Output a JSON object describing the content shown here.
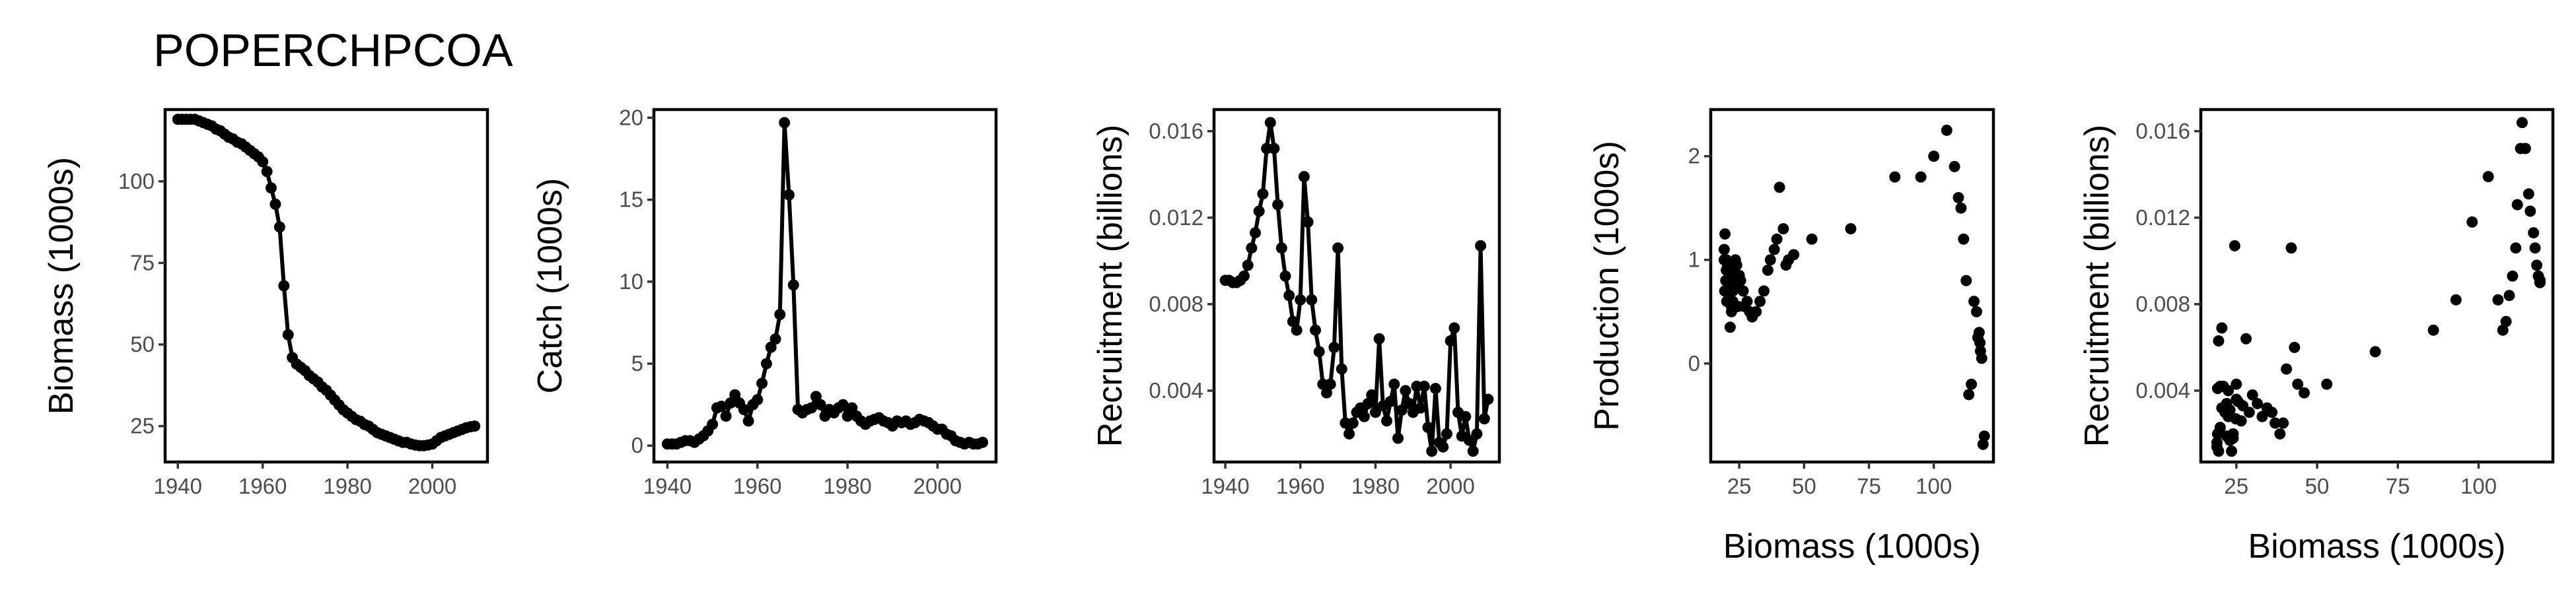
{
  "title": "POPERCHPCOA",
  "chart_data": [
    {
      "type": "line",
      "xlabel": "",
      "ylabel": "Biomass (1000s)",
      "xlim": [
        1937,
        2013
      ],
      "ylim": [
        14,
        122
      ],
      "xticks": [
        1940,
        1960,
        1980,
        2000
      ],
      "yticks": [
        25,
        50,
        75,
        100
      ],
      "ytick_labels": [
        "25",
        "50",
        "75",
        "100"
      ],
      "x": [
        1940,
        1941,
        1942,
        1943,
        1944,
        1945,
        1946,
        1947,
        1948,
        1949,
        1950,
        1951,
        1952,
        1953,
        1954,
        1955,
        1956,
        1957,
        1958,
        1959,
        1960,
        1961,
        1962,
        1963,
        1964,
        1965,
        1966,
        1967,
        1968,
        1969,
        1970,
        1971,
        1972,
        1973,
        1974,
        1975,
        1976,
        1977,
        1978,
        1979,
        1980,
        1981,
        1982,
        1983,
        1984,
        1985,
        1986,
        1987,
        1988,
        1989,
        1990,
        1991,
        1992,
        1993,
        1994,
        1995,
        1996,
        1997,
        1998,
        1999,
        2000,
        2001,
        2002,
        2003,
        2004,
        2005,
        2006,
        2007,
        2008,
        2009,
        2010
      ],
      "y": [
        119,
        119,
        119,
        119,
        119,
        118.5,
        118,
        117.5,
        117,
        116,
        115.5,
        114.5,
        113.5,
        113,
        112,
        111.5,
        110.5,
        109.5,
        108.5,
        107.5,
        106,
        103,
        98,
        93,
        86,
        68,
        53,
        46,
        44,
        43,
        42,
        40.5,
        39.5,
        38.5,
        37,
        36,
        34.5,
        33,
        31.5,
        30,
        29,
        28,
        27,
        26.5,
        25.5,
        25,
        24,
        23,
        22.5,
        22,
        21.5,
        21,
        20.5,
        20,
        20,
        19.5,
        19.2,
        19,
        19,
        19.2,
        19.5,
        20.5,
        21.5,
        22,
        22.5,
        23,
        23.5,
        24,
        24.5,
        24.8,
        25
      ]
    },
    {
      "type": "line",
      "xlabel": "",
      "ylabel": "Catch (1000s)",
      "xlim": [
        1937,
        2013
      ],
      "ylim": [
        -1,
        20.5
      ],
      "xticks": [
        1940,
        1960,
        1980,
        2000
      ],
      "yticks": [
        0,
        5,
        10,
        15,
        20
      ],
      "ytick_labels": [
        "0",
        "5",
        "10",
        "15",
        "20"
      ],
      "x": [
        1940,
        1941,
        1942,
        1943,
        1944,
        1945,
        1946,
        1947,
        1948,
        1949,
        1950,
        1951,
        1952,
        1953,
        1954,
        1955,
        1956,
        1957,
        1958,
        1959,
        1960,
        1961,
        1962,
        1963,
        1964,
        1965,
        1966,
        1967,
        1968,
        1969,
        1970,
        1971,
        1972,
        1973,
        1974,
        1975,
        1976,
        1977,
        1978,
        1979,
        1980,
        1981,
        1982,
        1983,
        1984,
        1985,
        1986,
        1987,
        1988,
        1989,
        1990,
        1991,
        1992,
        1993,
        1994,
        1995,
        1996,
        1997,
        1998,
        1999,
        2000,
        2001,
        2002,
        2003,
        2004,
        2005,
        2006,
        2007,
        2008,
        2009,
        2010
      ],
      "y": [
        0.1,
        0.1,
        0.1,
        0.2,
        0.3,
        0.3,
        0.2,
        0.4,
        0.6,
        0.9,
        1.3,
        2.3,
        2.4,
        1.8,
        2.6,
        3.1,
        2.6,
        2.2,
        1.5,
        2.5,
        2.8,
        3.8,
        5.0,
        6.0,
        6.5,
        8.0,
        19.7,
        15.3,
        9.8,
        2.2,
        2.0,
        2.2,
        2.3,
        3.0,
        2.5,
        1.8,
        2.2,
        2.0,
        2.3,
        2.5,
        1.8,
        2.3,
        1.8,
        1.5,
        1.3,
        1.5,
        1.6,
        1.7,
        1.5,
        1.4,
        1.2,
        1.5,
        1.4,
        1.5,
        1.3,
        1.4,
        1.6,
        1.5,
        1.4,
        1.2,
        1.0,
        1.0,
        0.7,
        0.6,
        0.3,
        0.2,
        0.1,
        0.2,
        0.1,
        0.1,
        0.2
      ]
    },
    {
      "type": "line",
      "xlabel": "",
      "ylabel": "Recruitment (billions)",
      "xlim": [
        1937,
        2013
      ],
      "ylim": [
        0.0007,
        0.017
      ],
      "xticks": [
        1940,
        1960,
        1980,
        2000
      ],
      "yticks": [
        0.004,
        0.008,
        0.012,
        0.016
      ],
      "ytick_labels": [
        "0.004",
        "0.008",
        "0.012",
        "0.016"
      ],
      "x": [
        1940,
        1941,
        1942,
        1943,
        1944,
        1945,
        1946,
        1947,
        1948,
        1949,
        1950,
        1951,
        1952,
        1953,
        1954,
        1955,
        1956,
        1957,
        1958,
        1959,
        1960,
        1961,
        1962,
        1963,
        1964,
        1965,
        1966,
        1967,
        1968,
        1969,
        1970,
        1971,
        1972,
        1973,
        1974,
        1975,
        1976,
        1977,
        1978,
        1979,
        1980,
        1981,
        1982,
        1983,
        1984,
        1985,
        1986,
        1987,
        1988,
        1989,
        1990,
        1991,
        1992,
        1993,
        1994,
        1995,
        1996,
        1997,
        1998,
        1999,
        2000,
        2001,
        2002,
        2003,
        2004,
        2005,
        2006,
        2007,
        2008,
        2009,
        2010
      ],
      "y": [
        0.0091,
        0.0091,
        0.009,
        0.009,
        0.0091,
        0.0093,
        0.0098,
        0.0106,
        0.0113,
        0.0123,
        0.0131,
        0.0152,
        0.0164,
        0.0152,
        0.0126,
        0.0106,
        0.0093,
        0.0084,
        0.0072,
        0.0068,
        0.0082,
        0.0139,
        0.0118,
        0.0082,
        0.0068,
        0.0058,
        0.0043,
        0.0039,
        0.0043,
        0.006,
        0.0106,
        0.005,
        0.0025,
        0.002,
        0.0025,
        0.003,
        0.0032,
        0.0028,
        0.0034,
        0.0038,
        0.003,
        0.0064,
        0.0033,
        0.0026,
        0.0035,
        0.0043,
        0.0018,
        0.0031,
        0.004,
        0.0034,
        0.003,
        0.0042,
        0.0032,
        0.0042,
        0.0023,
        0.0012,
        0.0041,
        0.0016,
        0.0014,
        0.002,
        0.0063,
        0.0069,
        0.003,
        0.0019,
        0.0028,
        0.0017,
        0.0012,
        0.002,
        0.0107,
        0.0027,
        0.0036
      ]
    },
    {
      "type": "scatter",
      "xlabel": "Biomass (1000s)",
      "ylabel": "Production (1000s)",
      "xlim": [
        14,
        123
      ],
      "ylim": [
        -0.95,
        2.45
      ],
      "xticks": [
        25,
        50,
        75,
        100
      ],
      "yticks": [
        0,
        1,
        2
      ],
      "ytick_labels": [
        "0",
        "1",
        "2"
      ],
      "x": [
        119.5,
        119,
        118.5,
        118,
        117.8,
        117.5,
        117,
        116.5,
        115.5,
        114.5,
        113.5,
        112.5,
        111.5,
        110.5,
        109.5,
        108,
        105,
        100,
        95,
        85,
        68,
        53,
        46,
        44,
        43,
        42,
        40.5,
        39.5,
        38.5,
        37,
        36,
        34.5,
        33,
        31.5,
        30,
        29,
        28,
        27,
        26.5,
        25.5,
        25,
        24.2,
        23.5,
        23,
        22.5,
        22,
        21.5,
        21,
        20.5,
        20.2,
        20,
        19.8,
        19.6,
        19.4,
        19.2,
        19.2,
        19.5,
        20,
        20.5,
        21,
        21.5,
        22,
        22.5,
        23,
        23.5,
        24,
        24.5
      ],
      "y": [
        -0.7,
        -0.78,
        0.05,
        0.12,
        0.2,
        0.3,
        0.25,
        0.5,
        0.6,
        -0.2,
        -0.3,
        0.8,
        1.2,
        1.5,
        1.6,
        1.9,
        2.25,
        2.0,
        1.8,
        1.8,
        1.3,
        1.2,
        1.05,
        1.0,
        0.95,
        1.3,
        1.7,
        1.2,
        1.1,
        1.0,
        0.9,
        0.7,
        0.6,
        0.5,
        0.45,
        0.5,
        0.6,
        0.55,
        0.7,
        0.8,
        0.85,
        0.75,
        1.0,
        0.9,
        0.7,
        0.5,
        0.35,
        0.6,
        0.7,
        0.6,
        0.9,
        0.8,
        1.0,
        0.7,
        1.1,
        1.0,
        1.25,
        1.0,
        0.95,
        0.8,
        0.7,
        0.55,
        0.6,
        0.85,
        0.75,
        0.95,
        0.55
      ]
    },
    {
      "type": "scatter",
      "xlabel": "Biomass (1000s)",
      "ylabel": "Recruitment (billions)",
      "xlim": [
        14,
        123
      ],
      "ylim": [
        0.0007,
        0.017
      ],
      "xticks": [
        25,
        50,
        75,
        100
      ],
      "yticks": [
        0.004,
        0.008,
        0.012,
        0.016
      ],
      "ytick_labels": [
        "0.004",
        "0.008",
        "0.012",
        "0.016"
      ],
      "x": [
        119,
        119,
        119,
        119,
        119,
        118.5,
        118,
        117.5,
        117,
        116,
        115.5,
        114.5,
        113.5,
        113,
        112,
        111.5,
        110.5,
        109.5,
        108.5,
        107.5,
        106,
        103,
        98,
        93,
        86,
        68,
        53,
        46,
        44,
        43,
        42,
        40.5,
        39.5,
        38.5,
        37,
        36,
        34.5,
        33,
        31.5,
        30,
        29,
        28,
        27,
        26.5,
        25.5,
        25,
        24,
        23,
        22.5,
        22,
        21.5,
        21,
        20.5,
        20,
        20,
        19.5,
        19.2,
        19,
        19,
        19.2,
        19.5,
        20.5,
        21.5,
        22,
        22.5,
        23,
        23.5,
        24,
        24.5,
        24.8,
        25
      ],
      "y": [
        0.0091,
        0.0091,
        0.009,
        0.009,
        0.0091,
        0.0093,
        0.0098,
        0.0106,
        0.0113,
        0.0123,
        0.0131,
        0.0152,
        0.0164,
        0.0152,
        0.0126,
        0.0106,
        0.0093,
        0.0084,
        0.0072,
        0.0068,
        0.0082,
        0.0139,
        0.0118,
        0.0082,
        0.0068,
        0.0058,
        0.0043,
        0.0039,
        0.0043,
        0.006,
        0.0106,
        0.005,
        0.0025,
        0.002,
        0.0025,
        0.003,
        0.0032,
        0.0028,
        0.0034,
        0.0038,
        0.003,
        0.0064,
        0.0033,
        0.0026,
        0.0035,
        0.0043,
        0.0018,
        0.0031,
        0.004,
        0.0034,
        0.003,
        0.0042,
        0.0032,
        0.0042,
        0.0023,
        0.0012,
        0.0041,
        0.0016,
        0.0014,
        0.002,
        0.0063,
        0.0069,
        0.003,
        0.0019,
        0.0028,
        0.0017,
        0.0012,
        0.002,
        0.0107,
        0.0027,
        0.0036
      ]
    }
  ]
}
